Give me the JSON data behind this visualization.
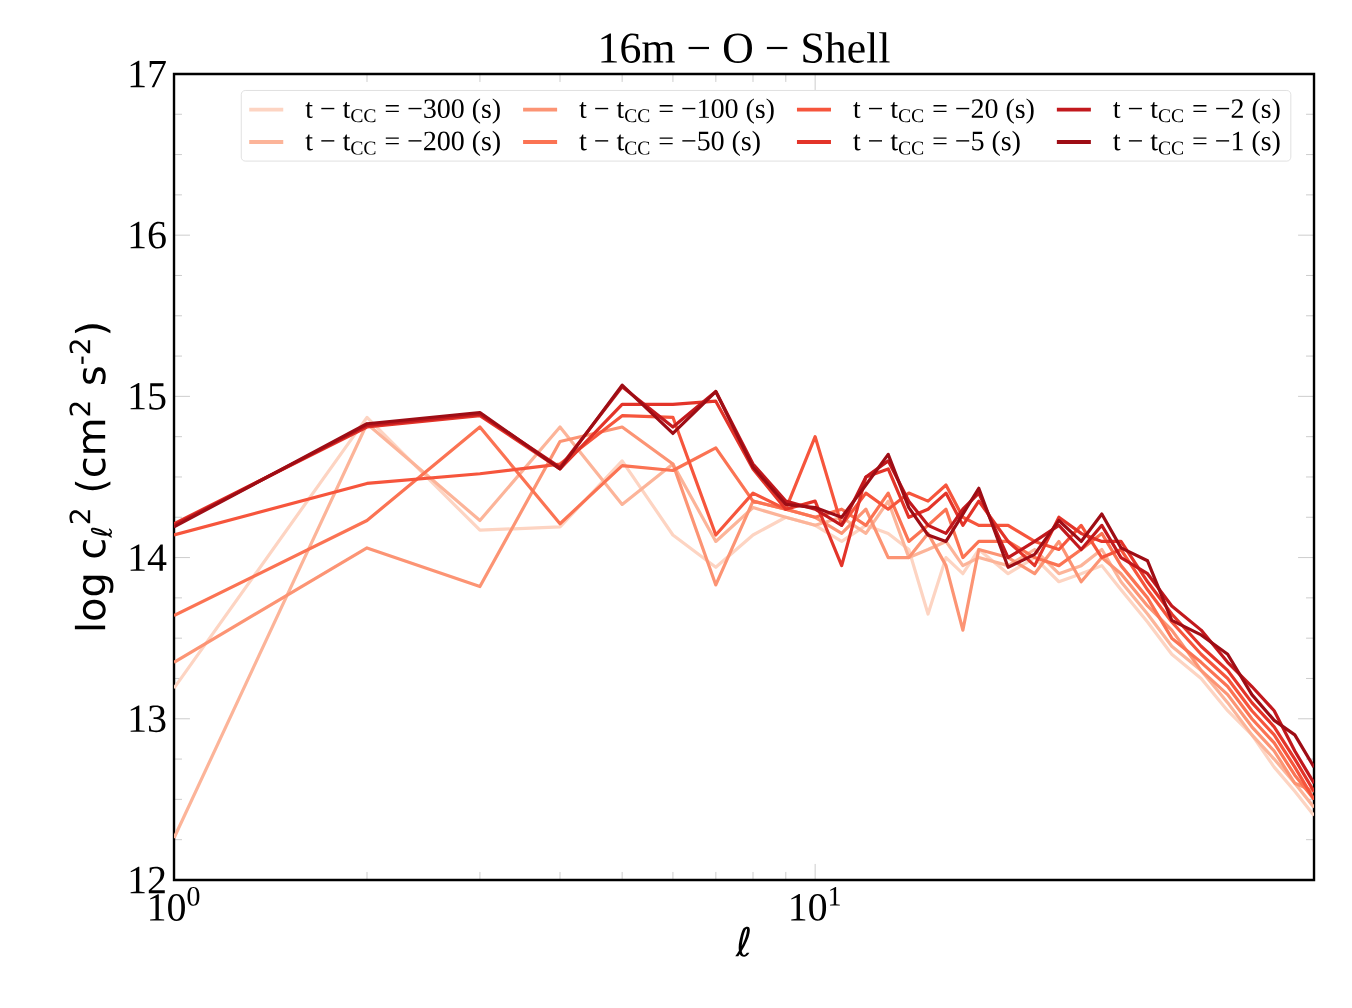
{
  "chart_data": {
    "type": "line",
    "title": "16m − O − Shell",
    "xlabel": "ℓ",
    "ylabel": "log c$_{ℓ}$$^{2}$ (cm$^{2}$ s$^{-2}$)",
    "log": "x",
    "legend": "top right",
    "xlim": [
      1,
      60
    ],
    "ylim": [
      12,
      17
    ],
    "xticks": [
      {
        "value": 1,
        "label": "10$^{0}$"
      },
      {
        "value": 10,
        "label": "10$^{1}$"
      }
    ],
    "yticks": [
      12,
      13,
      14,
      15,
      16,
      17
    ],
    "x": [
      1,
      2,
      3,
      4,
      5,
      6,
      7,
      8,
      9,
      10,
      11,
      12,
      13,
      14,
      15,
      16,
      17,
      18,
      20,
      22,
      24,
      26,
      28,
      30,
      33,
      36,
      40,
      44,
      48,
      52,
      56,
      60
    ],
    "series": [
      {
        "name": "t − t$_{CC}$ = −300 (s)",
        "color": "#fdd4c2",
        "values": [
          13.19,
          14.87,
          14.17,
          14.19,
          14.6,
          14.14,
          13.94,
          14.14,
          14.25,
          14.2,
          14.1,
          14.2,
          14.15,
          14.05,
          13.65,
          14.0,
          13.9,
          14.05,
          13.9,
          14.0,
          13.85,
          13.9,
          13.95,
          13.8,
          13.6,
          13.4,
          13.25,
          13.05,
          12.9,
          12.7,
          12.55,
          12.4
        ]
      },
      {
        "name": "t − t$_{CC}$ = −200 (s)",
        "color": "#fcb499",
        "values": [
          12.26,
          14.83,
          14.23,
          14.81,
          14.33,
          14.58,
          14.1,
          14.31,
          14.25,
          14.2,
          14.25,
          14.15,
          14.35,
          14.0,
          14.05,
          14.1,
          13.95,
          14.0,
          13.95,
          14.05,
          13.9,
          13.95,
          14.05,
          13.85,
          13.65,
          13.45,
          13.3,
          13.1,
          12.9,
          12.75,
          12.6,
          12.45
        ]
      },
      {
        "name": "t − t$_{CC}$ = −100 (s)",
        "color": "#fc9474",
        "values": [
          13.35,
          14.06,
          13.82,
          14.72,
          14.81,
          14.58,
          13.83,
          14.35,
          14.3,
          14.25,
          14.15,
          14.3,
          14.0,
          14.0,
          14.15,
          13.95,
          13.55,
          14.05,
          14.0,
          13.9,
          14.1,
          13.85,
          14.0,
          13.9,
          13.7,
          13.55,
          13.3,
          13.15,
          12.95,
          12.8,
          12.6,
          12.55
        ]
      },
      {
        "name": "t − t$_{CC}$ = −50 (s)",
        "color": "#fb7353",
        "values": [
          13.64,
          14.23,
          14.81,
          14.21,
          14.57,
          14.54,
          14.68,
          14.35,
          14.3,
          14.25,
          14.3,
          14.2,
          14.4,
          14.1,
          14.2,
          14.3,
          14.0,
          14.1,
          14.1,
          14.0,
          13.95,
          14.05,
          14.15,
          13.95,
          13.75,
          13.5,
          13.35,
          13.2,
          13.0,
          12.85,
          12.65,
          12.5
        ]
      },
      {
        "name": "t − t$_{CC}$ = −20 (s)",
        "color": "#f6553c",
        "values": [
          14.14,
          14.46,
          14.52,
          14.58,
          14.88,
          14.87,
          14.14,
          14.4,
          14.3,
          14.75,
          14.2,
          14.4,
          14.3,
          14.4,
          14.35,
          14.45,
          14.25,
          14.2,
          14.2,
          14.1,
          14.05,
          14.2,
          14.0,
          14.05,
          13.8,
          13.6,
          13.4,
          13.25,
          13.05,
          12.9,
          12.7,
          12.5
        ]
      },
      {
        "name": "t − t$_{CC}$ = −5 (s)",
        "color": "#e33429",
        "values": [
          14.21,
          14.81,
          14.88,
          14.55,
          14.95,
          14.95,
          14.97,
          14.55,
          14.3,
          14.35,
          13.95,
          14.5,
          14.55,
          14.25,
          14.3,
          14.4,
          14.2,
          14.35,
          14.1,
          13.95,
          14.25,
          14.15,
          14.1,
          14.1,
          13.85,
          13.65,
          13.45,
          13.3,
          13.1,
          12.95,
          12.75,
          12.55
        ]
      },
      {
        "name": "t − t$_{CC}$ = −2 (s)",
        "color": "#c2191d",
        "values": [
          14.2,
          14.82,
          14.89,
          14.56,
          15.06,
          14.81,
          15.03,
          14.58,
          14.35,
          14.3,
          14.2,
          14.5,
          14.6,
          14.35,
          14.2,
          14.15,
          14.3,
          14.4,
          14.0,
          14.1,
          14.2,
          14.05,
          14.2,
          14.0,
          13.9,
          13.7,
          13.55,
          13.35,
          13.2,
          13.05,
          12.8,
          12.6
        ]
      },
      {
        "name": "t − t$_{CC}$ = −1 (s)",
        "color": "#9e0d15",
        "values": [
          14.19,
          14.83,
          14.9,
          14.55,
          15.07,
          14.77,
          15.03,
          14.56,
          14.33,
          14.31,
          14.25,
          14.45,
          14.64,
          14.31,
          14.14,
          14.1,
          14.27,
          14.43,
          13.94,
          14.02,
          14.23,
          14.1,
          14.27,
          14.06,
          13.98,
          13.61,
          13.52,
          13.4,
          13.15,
          12.99,
          12.9,
          12.7
        ]
      }
    ]
  }
}
